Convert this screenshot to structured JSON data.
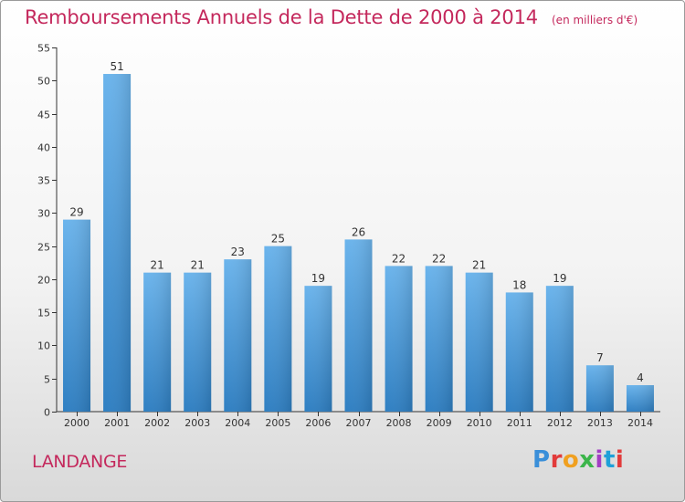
{
  "header": {
    "title": "Remboursements Annuels de la Dette de 2000 à 2014",
    "subtitle": "(en milliers d'€)"
  },
  "footer": {
    "commune": "LANDANGE",
    "logo": "Proxiti"
  },
  "colors": {
    "title": "#c4285c",
    "bar_top": "#6bb4ec",
    "bar_bottom": "#2f7fc2",
    "axis": "#333333"
  },
  "chart_data": {
    "type": "bar",
    "categories": [
      "2000",
      "2001",
      "2002",
      "2003",
      "2004",
      "2005",
      "2006",
      "2007",
      "2008",
      "2009",
      "2010",
      "2011",
      "2012",
      "2013",
      "2014"
    ],
    "values": [
      29,
      51,
      21,
      21,
      23,
      25,
      19,
      26,
      22,
      22,
      21,
      18,
      19,
      7,
      4
    ],
    "title": "Remboursements Annuels de la Dette de 2000 à 2014",
    "subtitle": "(en milliers d'€)",
    "xlabel": "",
    "ylabel": "",
    "ylim": [
      0,
      55
    ],
    "yticks": [
      0,
      5,
      10,
      15,
      20,
      25,
      30,
      35,
      40,
      45,
      50,
      55
    ],
    "grid": false,
    "data_labels": true
  }
}
